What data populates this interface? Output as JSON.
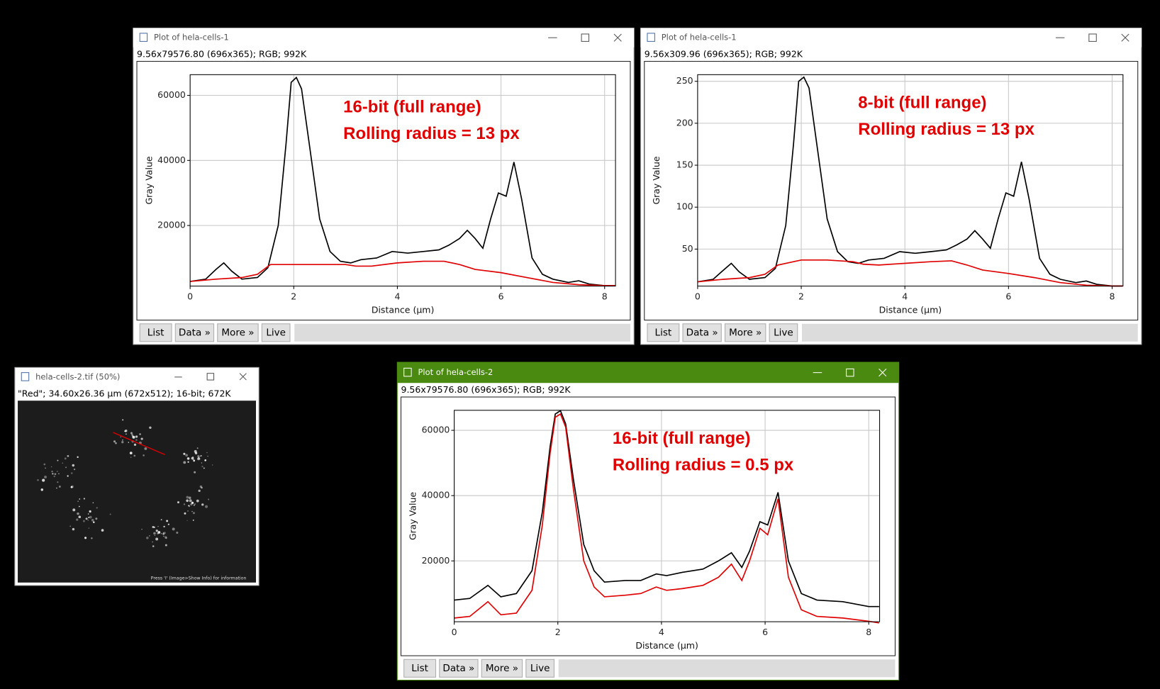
{
  "plot_windows": [
    {
      "title": "Plot of hela-cells-1",
      "info": "9.56x79576.80   (696x365); RGB; 992K"
    },
    {
      "title": "Plot of hela-cells-1",
      "info": "9.56x309.96   (696x365); RGB; 992K"
    },
    {
      "title": "Plot of hela-cells-2",
      "info": "9.56x79576.80   (696x365); RGB; 992K"
    }
  ],
  "buttons": [
    "List",
    "Data »",
    "More »",
    "Live"
  ],
  "image_window": {
    "title": "hela-cells-2.tif (50%)",
    "info": "\"Red\"; 34.60x26.36 µm (672x512); 16-bit; 672K",
    "footer": "Press 'I' (Image>Show Info) for information"
  },
  "chart_data": [
    {
      "type": "line",
      "xlabel": "Distance (µm)",
      "ylabel": "Gray Value",
      "annotations": [
        "16-bit (full range)",
        "Rolling radius = 13 px"
      ],
      "xlim": [
        0,
        8.21
      ],
      "ylim": [
        1364,
        66364
      ],
      "xticks": [
        0,
        2,
        4,
        6,
        8
      ],
      "yticks": [
        20000,
        40000,
        60000
      ],
      "grid": true,
      "series": [
        {
          "color": "#000000",
          "x": [
            0,
            0.3,
            0.5,
            0.65,
            0.8,
            1.0,
            1.3,
            1.5,
            1.7,
            1.85,
            1.95,
            2.05,
            2.15,
            2.3,
            2.5,
            2.7,
            2.9,
            3.1,
            3.3,
            3.6,
            3.9,
            4.2,
            4.5,
            4.8,
            5.0,
            5.2,
            5.35,
            5.5,
            5.65,
            5.8,
            5.95,
            6.1,
            6.25,
            6.4,
            6.6,
            6.8,
            7.0,
            7.3,
            7.5,
            7.7,
            8.0,
            8.2
          ],
          "values": [
            2800,
            3500,
            6500,
            8500,
            6000,
            3500,
            4000,
            7000,
            20000,
            45000,
            64000,
            65500,
            62000,
            45000,
            22000,
            12000,
            9000,
            8500,
            9500,
            10000,
            12000,
            11500,
            12000,
            12500,
            14000,
            16000,
            18500,
            16000,
            13000,
            22000,
            30000,
            29000,
            39500,
            28000,
            10000,
            5000,
            3500,
            2500,
            3000,
            2000,
            1500,
            1500
          ]
        },
        {
          "color": "#e00000",
          "x": [
            0,
            0.5,
            1.0,
            1.3,
            1.55,
            2,
            2.5,
            3.0,
            3.2,
            3.5,
            4,
            4.5,
            4.9,
            5.2,
            5.5,
            6,
            6.5,
            7,
            7.5,
            8,
            8.2
          ],
          "values": [
            2800,
            3500,
            4000,
            5000,
            8000,
            8000,
            8000,
            8000,
            7500,
            7500,
            8500,
            9000,
            9000,
            8000,
            6500,
            5500,
            4000,
            2500,
            1800,
            1500,
            1500
          ]
        }
      ]
    },
    {
      "type": "line",
      "xlabel": "Distance (µm)",
      "ylabel": "Gray Value",
      "annotations": [
        "8-bit (full range)",
        "Rolling radius = 13 px"
      ],
      "xlim": [
        0,
        8.21
      ],
      "ylim": [
        5.9,
        257.9
      ],
      "xticks": [
        0,
        2,
        4,
        6,
        8
      ],
      "yticks": [
        50,
        100,
        150,
        200,
        250
      ],
      "grid": true,
      "series": [
        {
          "color": "#000000",
          "x": [
            0,
            0.3,
            0.5,
            0.65,
            0.8,
            1.0,
            1.3,
            1.5,
            1.7,
            1.85,
            1.95,
            2.05,
            2.15,
            2.3,
            2.5,
            2.7,
            2.9,
            3.1,
            3.3,
            3.6,
            3.9,
            4.2,
            4.5,
            4.8,
            5.0,
            5.2,
            5.35,
            5.5,
            5.65,
            5.8,
            5.95,
            6.1,
            6.25,
            6.4,
            6.6,
            6.8,
            7.0,
            7.3,
            7.5,
            7.7,
            8.0,
            8.2
          ],
          "values": [
            11,
            14,
            25,
            33,
            23,
            14,
            16,
            27,
            78,
            175,
            250,
            255,
            242,
            175,
            86,
            47,
            35,
            33,
            37,
            39,
            47,
            45,
            47,
            49,
            55,
            62,
            72,
            62,
            51,
            86,
            117,
            113,
            154,
            109,
            39,
            20,
            14,
            10,
            12,
            8,
            6,
            6
          ]
        },
        {
          "color": "#e00000",
          "x": [
            0,
            0.5,
            1.0,
            1.3,
            1.55,
            2,
            2.5,
            3.0,
            3.2,
            3.5,
            4,
            4.5,
            4.9,
            5.2,
            5.5,
            6,
            6.5,
            7,
            7.5,
            8,
            8.2
          ],
          "values": [
            11,
            14,
            16,
            20,
            31,
            37,
            37,
            35,
            32,
            31,
            33,
            35,
            36,
            31,
            25,
            21,
            16,
            10,
            7,
            6,
            6
          ]
        }
      ]
    },
    {
      "type": "line",
      "xlabel": "Distance (µm)",
      "ylabel": "Gray Value",
      "annotations": [
        "16-bit (full range)",
        "Rolling radius = 0.5 px"
      ],
      "xlim": [
        0,
        8.21
      ],
      "ylim": [
        1364,
        66136
      ],
      "xticks": [
        0,
        2,
        4,
        6,
        8
      ],
      "yticks": [
        20000,
        40000,
        60000
      ],
      "grid": true,
      "series": [
        {
          "color": "#000000",
          "x": [
            0,
            0.3,
            0.65,
            0.9,
            1.2,
            1.5,
            1.7,
            1.85,
            1.95,
            2.05,
            2.15,
            2.3,
            2.5,
            2.7,
            2.9,
            3.3,
            3.6,
            3.9,
            4.1,
            4.4,
            4.8,
            5.1,
            5.35,
            5.55,
            5.7,
            5.9,
            6.05,
            6.25,
            6.45,
            6.7,
            7.0,
            7.5,
            8.0,
            8.2
          ],
          "values": [
            8000,
            8500,
            12500,
            9000,
            10000,
            17000,
            35000,
            55000,
            65000,
            66000,
            62000,
            45000,
            25000,
            17000,
            13500,
            14000,
            14000,
            16000,
            15500,
            16500,
            17500,
            20000,
            22500,
            18000,
            23000,
            32000,
            31000,
            41000,
            20000,
            10000,
            8000,
            7500,
            6000,
            6000
          ]
        },
        {
          "color": "#e00000",
          "x": [
            0,
            0.3,
            0.65,
            0.9,
            1.2,
            1.5,
            1.7,
            1.85,
            1.95,
            2.05,
            2.15,
            2.3,
            2.5,
            2.7,
            2.9,
            3.3,
            3.6,
            3.9,
            4.1,
            4.4,
            4.8,
            5.1,
            5.35,
            5.55,
            5.7,
            5.9,
            6.05,
            6.25,
            6.45,
            6.7,
            7.0,
            7.5,
            8.0,
            8.2
          ],
          "values": [
            2500,
            3000,
            7500,
            3500,
            4000,
            11000,
            31000,
            53000,
            64000,
            65000,
            61000,
            42000,
            20000,
            12000,
            9000,
            9500,
            10000,
            12000,
            11000,
            11500,
            12500,
            15000,
            19000,
            14000,
            20000,
            30000,
            28000,
            39000,
            15000,
            5000,
            3000,
            2500,
            1500,
            1000
          ]
        }
      ]
    }
  ]
}
